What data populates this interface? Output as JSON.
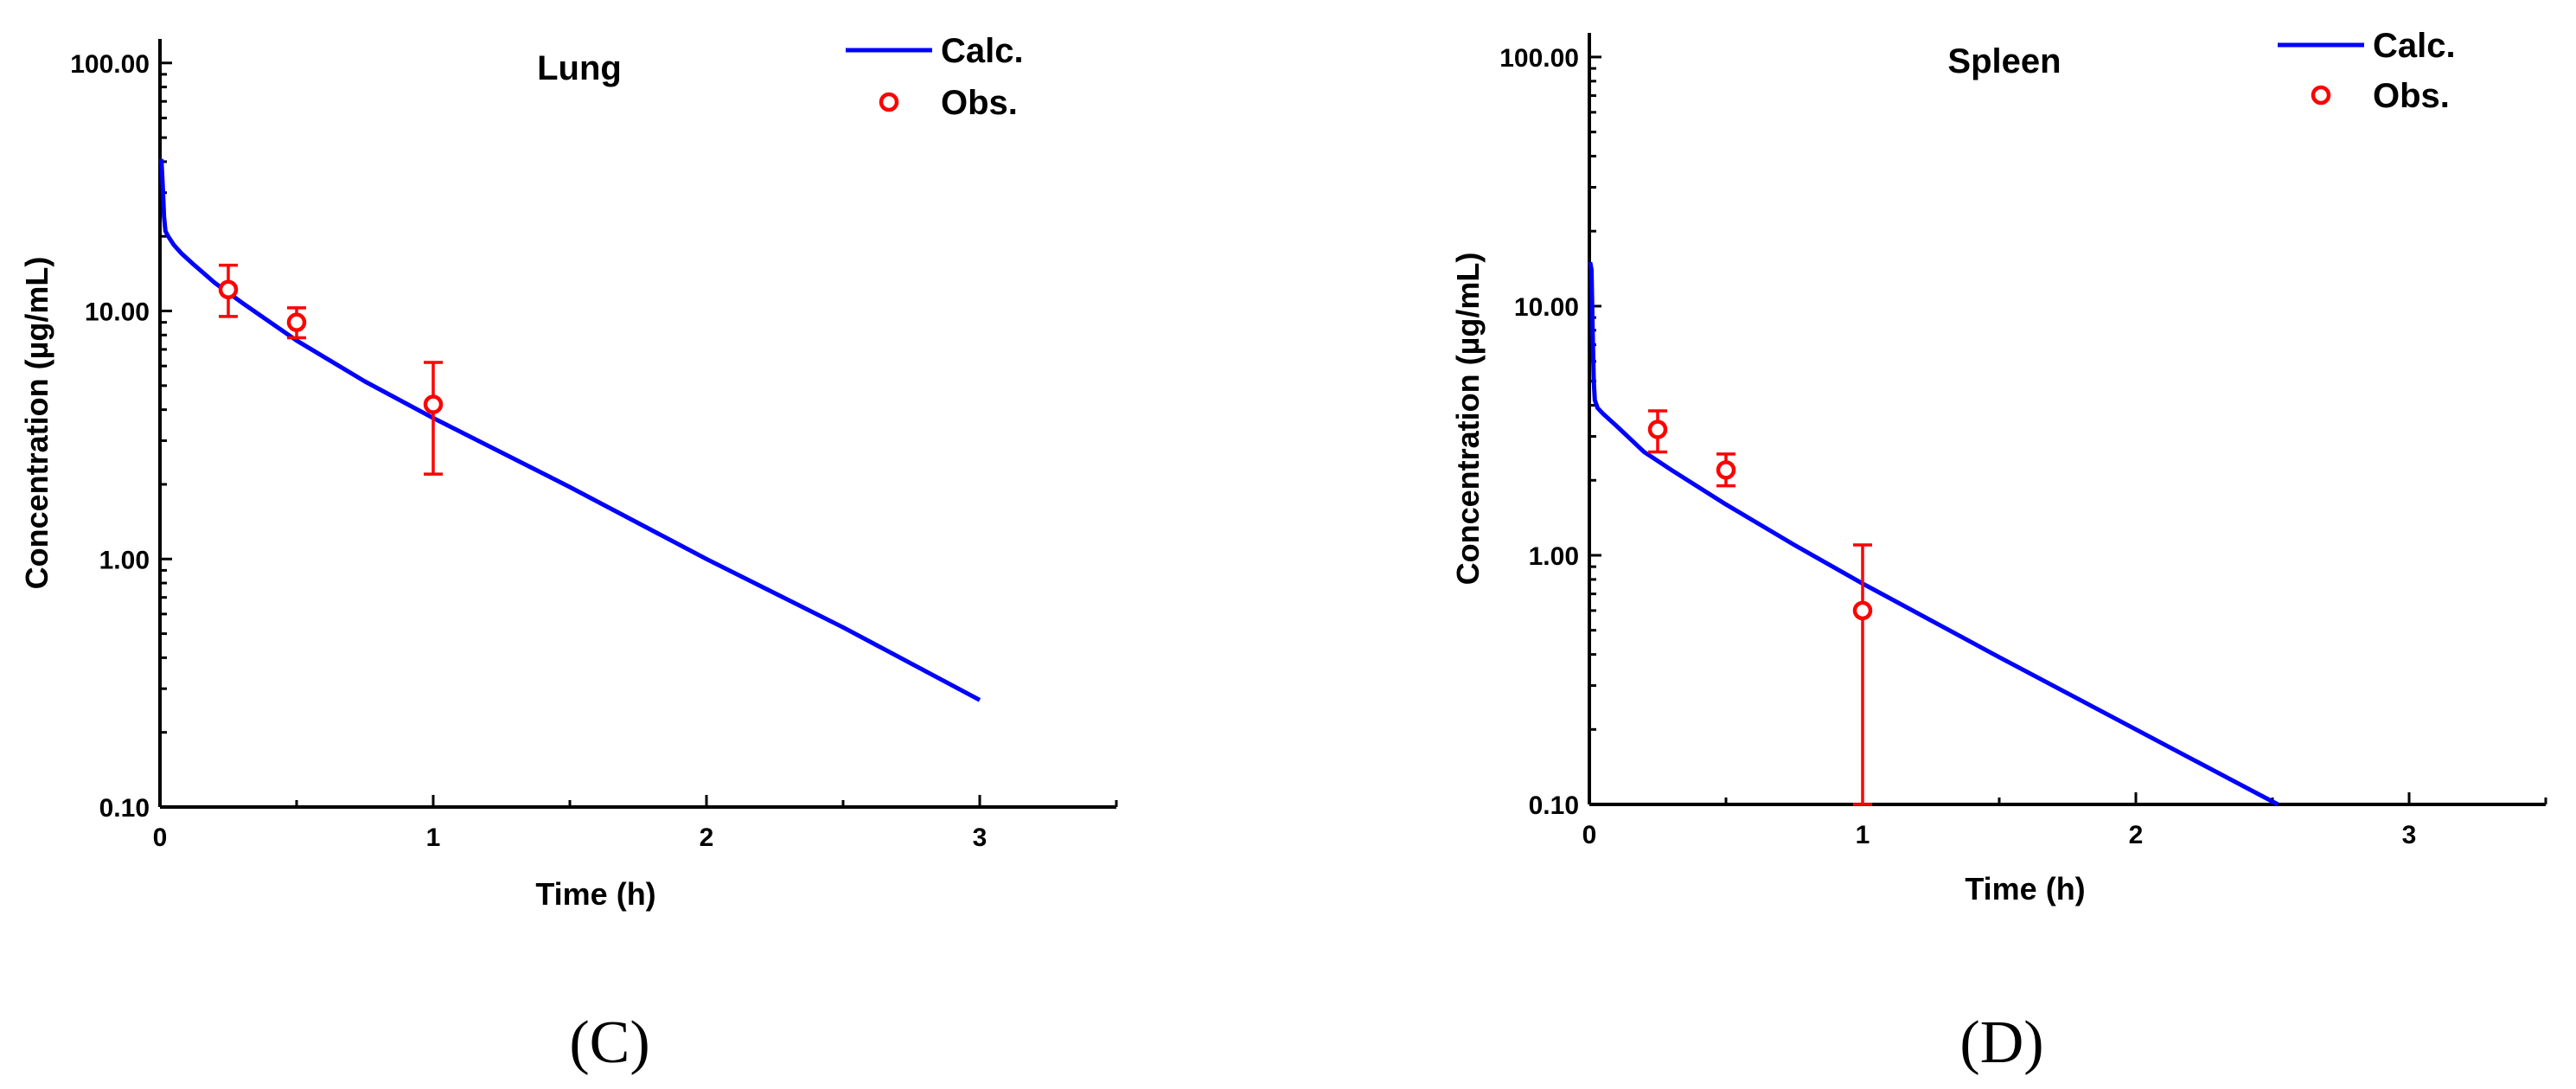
{
  "colors": {
    "calc": "#0000ff",
    "obs": "#ff0000",
    "axis": "#000000"
  },
  "chart_data": [
    {
      "type": "line",
      "panel_label": "(C)",
      "title": "Lung",
      "xlabel": "Time (h)",
      "ylabel": "Concentration (µg/mL)",
      "yscale": "log",
      "xlim": [
        0,
        3.5
      ],
      "ylim": [
        0.1,
        125
      ],
      "xticks": [
        0,
        1,
        2,
        3
      ],
      "xtick_labels": [
        "0",
        "1",
        "2",
        "3"
      ],
      "yticks": [
        0.1,
        1,
        10,
        100
      ],
      "ytick_labels": [
        "0.10",
        "1.00",
        "10.00",
        "100.00"
      ],
      "legend": {
        "position": "top-right",
        "entries": [
          "Calc.",
          "Obs."
        ]
      },
      "series": [
        {
          "name": "Calc.",
          "style": "line",
          "x": [
            0.005,
            0.01,
            0.015,
            0.02,
            0.03,
            0.05,
            0.08,
            0.12,
            0.2,
            0.3,
            0.5,
            0.75,
            1.0,
            1.5,
            2.0,
            2.5,
            3.0
          ],
          "y": [
            41,
            32,
            24,
            21,
            20,
            18.5,
            17,
            15.5,
            13,
            10.8,
            7.6,
            5.2,
            3.7,
            1.95,
            1.0,
            0.53,
            0.27
          ]
        },
        {
          "name": "Obs.",
          "style": "marker",
          "x": [
            0.25,
            0.5,
            1.0
          ],
          "y": [
            12.2,
            9.0,
            4.2
          ],
          "err_low": [
            9.5,
            7.8,
            2.2
          ],
          "err_high": [
            15.3,
            10.3,
            6.2
          ]
        }
      ]
    },
    {
      "type": "line",
      "panel_label": "(D)",
      "title": "Spleen",
      "xlabel": "Time (h)",
      "ylabel": "Concentration (µg/mL)",
      "yscale": "log",
      "xlim": [
        0,
        3.5
      ],
      "ylim": [
        0.1,
        125
      ],
      "xticks": [
        0,
        1,
        2,
        3
      ],
      "xtick_labels": [
        "0",
        "1",
        "2",
        "3"
      ],
      "yticks": [
        0.1,
        1,
        10,
        100
      ],
      "ytick_labels": [
        "0.10",
        "1.00",
        "10.00",
        "100.00"
      ],
      "legend": {
        "position": "top-right",
        "entries": [
          "Calc.",
          "Obs."
        ]
      },
      "series": [
        {
          "name": "Calc.",
          "style": "line",
          "x": [
            0.003,
            0.008,
            0.012,
            0.016,
            0.02,
            0.03,
            0.05,
            0.1,
            0.2,
            0.3,
            0.5,
            0.75,
            1.0,
            1.5,
            2.0,
            2.52
          ],
          "y": [
            15,
            14,
            8,
            5,
            4.2,
            3.9,
            3.7,
            3.3,
            2.6,
            2.2,
            1.6,
            1.1,
            0.77,
            0.39,
            0.2,
            0.1
          ]
        },
        {
          "name": "Obs.",
          "style": "marker",
          "x": [
            0.25,
            0.5,
            1.0
          ],
          "y": [
            3.2,
            2.2,
            0.6
          ],
          "err_low": [
            2.6,
            1.9,
            0.1
          ],
          "err_high": [
            3.8,
            2.55,
            1.1
          ]
        }
      ]
    }
  ]
}
